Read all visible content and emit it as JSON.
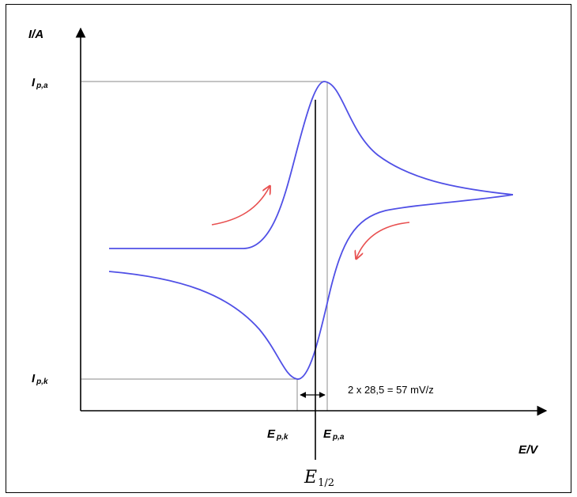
{
  "chart_data": {
    "type": "line",
    "title": "",
    "xlabel": "E/V",
    "ylabel": "I/A",
    "ticks": {
      "x": [
        {
          "key": "Epk",
          "main": "E",
          "sub": "p,k"
        },
        {
          "key": "Epa",
          "main": "E",
          "sub": "p,a"
        }
      ],
      "y": [
        {
          "key": "Ipa",
          "main": "I",
          "sub": "p,a"
        },
        {
          "key": "Ipk",
          "main": "I",
          "sub": "p,k"
        }
      ]
    },
    "half_wave": {
      "main": "E",
      "sub": "1/2"
    },
    "separation_label": "2 x 28,5 = 57 mV/z",
    "colors": {
      "curve": "#5050e6",
      "arrows": "#e85050",
      "guides": "#a0a0a0",
      "axes": "#000000"
    },
    "series": [
      {
        "values_note": "",
        "x": [
          0,
          0.2,
          0.35,
          0.45,
          0.5,
          0.55,
          0.6,
          0.66,
          0.7,
          0.73,
          0.78,
          0.85,
          0.95,
          1.05,
          1.15,
          1.25,
          1.34
        ],
        "y": [
          0.62,
          0.625,
          0.64,
          0.68,
          0.72,
          0.8,
          0.92,
          1.06,
          1.0,
          0.9,
          0.82,
          0.76,
          0.72,
          0.7,
          0.69,
          0.68,
          0.67
        ]
      },
      {
        "values_note": "",
        "x": [
          1.34,
          1.2,
          1.0,
          0.85,
          0.75,
          0.7,
          0.66,
          0.62,
          0.58,
          0.55,
          0.5,
          0.4,
          0.3,
          0.15,
          0
        ],
        "y": [
          0.67,
          0.66,
          0.64,
          0.62,
          0.58,
          0.52,
          0.42,
          0.3,
          0.18,
          0.1,
          0.15,
          0.28,
          0.36,
          0.42,
          0.46
        ]
      }
    ]
  }
}
